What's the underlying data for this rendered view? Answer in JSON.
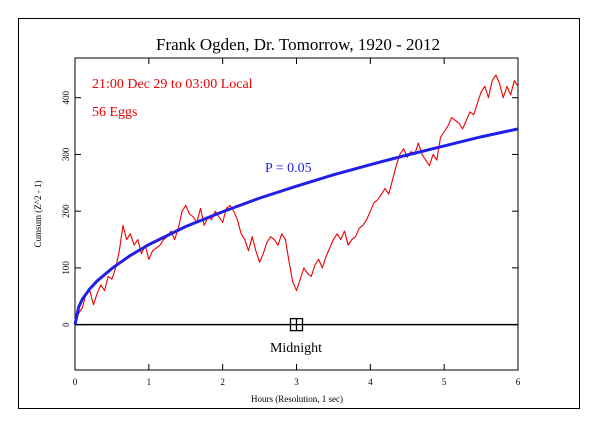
{
  "chart_data": {
    "type": "line",
    "title": "Frank Ogden, Dr. Tomorrow, 1920 - 2012",
    "annotations": {
      "time_window": "21:00 Dec 29 to 03:00 Local",
      "eggs": "56 Eggs",
      "p_label": "P = 0.05",
      "marker_label": "Midnight"
    },
    "xlabel": "Hours (Resolution, 1 sec)",
    "ylabel": "Cumsum (Z^2 - 1)",
    "xlim": [
      0,
      6
    ],
    "ylim": [
      -80,
      470
    ],
    "x_ticks": [
      "0",
      "1",
      "2",
      "3",
      "4",
      "5",
      "6"
    ],
    "y_ticks": [
      "0",
      "100",
      "200",
      "300",
      "400"
    ],
    "marker_x": 3.0,
    "grid": false,
    "series": [
      {
        "color": "#ee0000",
        "x": [
          0,
          0.05,
          0.1,
          0.15,
          0.2,
          0.25,
          0.3,
          0.35,
          0.4,
          0.45,
          0.5,
          0.55,
          0.6,
          0.65,
          0.7,
          0.75,
          0.8,
          0.85,
          0.9,
          0.95,
          1.0,
          1.05,
          1.1,
          1.15,
          1.2,
          1.25,
          1.3,
          1.35,
          1.4,
          1.45,
          1.5,
          1.55,
          1.6,
          1.65,
          1.7,
          1.75,
          1.8,
          1.85,
          1.9,
          1.95,
          2.0,
          2.05,
          2.1,
          2.15,
          2.2,
          2.25,
          2.3,
          2.35,
          2.4,
          2.45,
          2.5,
          2.55,
          2.6,
          2.65,
          2.7,
          2.75,
          2.8,
          2.85,
          2.9,
          2.95,
          3.0,
          3.05,
          3.1,
          3.15,
          3.2,
          3.25,
          3.3,
          3.35,
          3.4,
          3.45,
          3.5,
          3.55,
          3.6,
          3.65,
          3.7,
          3.75,
          3.8,
          3.85,
          3.9,
          3.95,
          4.0,
          4.05,
          4.1,
          4.15,
          4.2,
          4.25,
          4.3,
          4.35,
          4.4,
          4.45,
          4.5,
          4.55,
          4.6,
          4.65,
          4.7,
          4.75,
          4.8,
          4.85,
          4.9,
          4.95,
          5.0,
          5.05,
          5.1,
          5.15,
          5.2,
          5.25,
          5.3,
          5.35,
          5.4,
          5.45,
          5.5,
          5.55,
          5.6,
          5.65,
          5.7,
          5.75,
          5.8,
          5.85,
          5.9,
          5.95,
          6.0
        ],
        "y": [
          0,
          20,
          30,
          55,
          60,
          35,
          55,
          70,
          60,
          85,
          80,
          100,
          130,
          175,
          150,
          160,
          140,
          150,
          125,
          140,
          115,
          130,
          135,
          140,
          150,
          155,
          165,
          150,
          170,
          200,
          210,
          195,
          190,
          180,
          205,
          175,
          190,
          185,
          200,
          190,
          180,
          205,
          210,
          200,
          185,
          160,
          150,
          130,
          155,
          130,
          110,
          125,
          145,
          155,
          150,
          140,
          160,
          150,
          110,
          75,
          60,
          80,
          100,
          90,
          85,
          105,
          115,
          100,
          120,
          135,
          150,
          160,
          150,
          165,
          140,
          150,
          155,
          170,
          175,
          185,
          200,
          215,
          220,
          230,
          240,
          230,
          255,
          280,
          300,
          310,
          295,
          305,
          300,
          320,
          300,
          290,
          280,
          300,
          290,
          330,
          340,
          350,
          365,
          360,
          355,
          345,
          360,
          375,
          370,
          390,
          410,
          420,
          400,
          430,
          440,
          425,
          400,
          420,
          405,
          430,
          420
        ]
      },
      {
        "name": "P = 0.05",
        "color": "#1f1fe6",
        "x": [
          0,
          0.05,
          0.1,
          0.2,
          0.3,
          0.5,
          0.75,
          1.0,
          1.5,
          2.0,
          2.5,
          3.0,
          3.5,
          4.0,
          4.5,
          5.0,
          5.5,
          6.0
        ],
        "y": [
          0,
          31,
          45,
          63,
          77,
          99,
          122,
          141,
          173,
          199,
          223,
          244,
          264,
          282,
          299,
          315,
          331,
          345
        ]
      }
    ]
  }
}
